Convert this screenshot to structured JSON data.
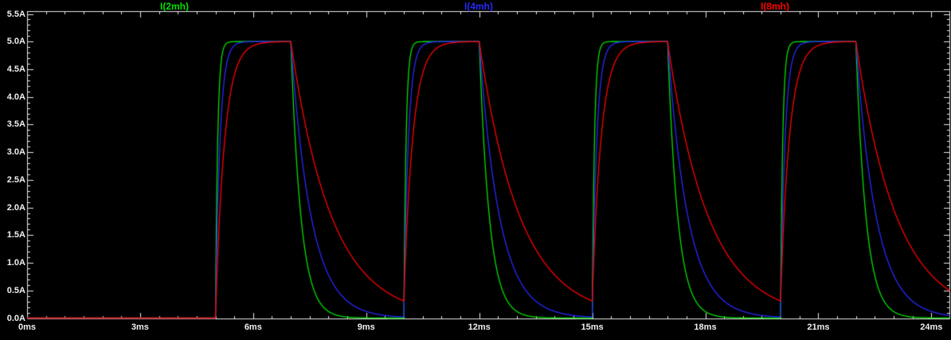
{
  "window": {
    "background": "#000000"
  },
  "chart_data": {
    "type": "line",
    "title": "",
    "description": "Pulsed inductor currents for three inductor values; repeated 5A pulses with exponential rise and decay, time constants scaling with inductance.",
    "x_unit": "ms",
    "y_unit": "A",
    "x_range_ms": [
      0,
      24.5
    ],
    "y_range_a": [
      0,
      5.5
    ],
    "x_tick_step_ms": 3,
    "y_tick_step_a": 0.5,
    "x_tick_values_ms": [
      0,
      3,
      6,
      9,
      12,
      15,
      18,
      21,
      24
    ],
    "x_tick_labels": [
      "0ms",
      "3ms",
      "6ms",
      "9ms",
      "12ms",
      "15ms",
      "18ms",
      "21ms",
      "24ms"
    ],
    "y_tick_values_a": [
      0.0,
      0.5,
      1.0,
      1.5,
      2.0,
      2.5,
      3.0,
      3.5,
      4.0,
      4.5,
      5.0,
      5.5
    ],
    "y_tick_labels": [
      "0.0A",
      "0.5A",
      "1.0A",
      "1.5A",
      "2.0A",
      "2.5A",
      "3.0A",
      "3.5A",
      "4.0A",
      "4.5A",
      "5.0A",
      "5.5A"
    ],
    "grid": false,
    "legend_position": "top",
    "background": "#000000",
    "axis_color": "#e8e8e8",
    "text_color": "#f0f0f0",
    "pulse": {
      "amplitude_a": 5.0,
      "first_rise_ms": 5.0,
      "period_ms": 5.0,
      "on_width_ms": 2.0,
      "pulse_count": 4
    },
    "series": [
      {
        "name": "I(2mh)",
        "color": "#00e000",
        "tau_rise_ms": 0.06,
        "tau_fall_ms": 0.27,
        "peak_a": 5.0
      },
      {
        "name": "I(4mh)",
        "color": "#2828ff",
        "tau_rise_ms": 0.12,
        "tau_fall_ms": 0.54,
        "peak_a": 5.0
      },
      {
        "name": "I(8mh)",
        "color": "#ff0000",
        "tau_rise_ms": 0.24,
        "tau_fall_ms": 1.08,
        "peak_a": 5.0
      }
    ]
  }
}
